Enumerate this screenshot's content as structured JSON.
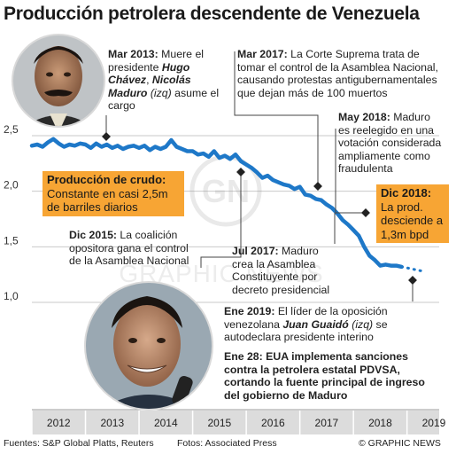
{
  "title": "Producción petrolera descendente de Venezuela",
  "chart_data": {
    "type": "line",
    "ylabel": "",
    "xlabel": "",
    "ylim": [
      1.0,
      2.5
    ],
    "yticks": [
      "2,5",
      "2,0",
      "1,5",
      "1,0"
    ],
    "ytick_values": [
      2.5,
      2.0,
      1.5,
      1.0
    ],
    "xticks": [
      "2012",
      "2013",
      "2014",
      "2015",
      "2016",
      "2017",
      "2018",
      "2019"
    ],
    "xlim": [
      2012.0,
      2019.6
    ],
    "grid": "horizontal",
    "series": [
      {
        "color": "#1e78c8",
        "x": [
          2012.0,
          2012.1,
          2012.2,
          2012.3,
          2012.4,
          2012.5,
          2012.6,
          2012.7,
          2012.8,
          2012.9,
          2013.0,
          2013.1,
          2013.2,
          2013.3,
          2013.4,
          2013.5,
          2013.6,
          2013.7,
          2013.8,
          2013.9,
          2014.0,
          2014.1,
          2014.2,
          2014.3,
          2014.4,
          2014.5,
          2014.6,
          2014.7,
          2014.8,
          2014.9,
          2015.0,
          2015.1,
          2015.2,
          2015.3,
          2015.4,
          2015.5,
          2015.6,
          2015.7,
          2015.8,
          2015.9,
          2016.0,
          2016.1,
          2016.2,
          2016.3,
          2016.4,
          2016.5,
          2016.6,
          2016.7,
          2016.8,
          2016.9,
          2017.0,
          2017.1,
          2017.2,
          2017.3,
          2017.4,
          2017.5,
          2017.6,
          2017.7,
          2017.8,
          2017.9,
          2018.0,
          2018.1,
          2018.2,
          2018.3,
          2018.4,
          2018.5,
          2018.6,
          2018.7,
          2018.8,
          2018.9
        ],
        "y": [
          2.41,
          2.42,
          2.4,
          2.44,
          2.47,
          2.43,
          2.4,
          2.42,
          2.41,
          2.43,
          2.42,
          2.39,
          2.43,
          2.4,
          2.42,
          2.39,
          2.41,
          2.38,
          2.4,
          2.41,
          2.39,
          2.41,
          2.37,
          2.4,
          2.38,
          2.4,
          2.46,
          2.4,
          2.38,
          2.36,
          2.36,
          2.33,
          2.34,
          2.31,
          2.36,
          2.3,
          2.32,
          2.29,
          2.33,
          2.27,
          2.24,
          2.21,
          2.17,
          2.12,
          2.14,
          2.1,
          2.08,
          2.06,
          2.05,
          2.02,
          2.04,
          1.97,
          1.96,
          1.93,
          1.92,
          1.88,
          1.85,
          1.8,
          1.74,
          1.7,
          1.65,
          1.6,
          1.5,
          1.42,
          1.38,
          1.33,
          1.34,
          1.33,
          1.33,
          1.32
        ]
      },
      {
        "color": "#1e78c8",
        "dashed": true,
        "x": [
          2018.9,
          2019.0,
          2019.1,
          2019.2,
          2019.3
        ],
        "y": [
          1.32,
          1.31,
          1.3,
          1.29,
          1.28
        ]
      }
    ],
    "annotations": [
      {
        "date": "Mar 2013:",
        "parts": [
          {
            "t": " Muere el presidente "
          },
          {
            "t": "Hugo Chávez",
            "s": "bi"
          },
          {
            "t": ", "
          },
          {
            "t": "Nicolás Maduro",
            "s": "bi"
          },
          {
            "t": " (izq)",
            "s": "i"
          },
          {
            "t": " asume el cargo"
          }
        ]
      },
      {
        "date": "Mar 2017:",
        "parts": [
          {
            "t": " La Corte Suprema trata de tomar el control de la Asamblea Nacional, causando protestas antigubernamentales que dejan más de 100 muertos"
          }
        ]
      },
      {
        "date": "May 2018:",
        "parts": [
          {
            "t": " Maduro es reelegido en una votación considerada ampliamente como fraudulenta"
          }
        ]
      },
      {
        "date": "Dic 2015:",
        "parts": [
          {
            "t": " La coalición opositora gana el control de la Asamblea Nacional"
          }
        ]
      },
      {
        "date": "Jul 2017:",
        "parts": [
          {
            "t": " Maduro crea la Asamblea Constituyente por decreto presidencial"
          }
        ]
      },
      {
        "date": "Ene 2019:",
        "parts": [
          {
            "t": " El líder de la oposición venezolana "
          },
          {
            "t": "Juan Guaidó",
            "s": "bi"
          },
          {
            "t": " (izq)",
            "s": "i"
          },
          {
            "t": " se autodeclara presidente interino"
          }
        ]
      },
      {
        "date": "Ene 28:",
        "parts": [
          {
            "t": " EUA implementa sanciones contra la petrolera estatal PDVSA, cortando la fuente principal de ingreso del gobierno de Maduro",
            "s": "b"
          }
        ]
      }
    ],
    "callouts": [
      {
        "heading": "Producción de crudo:",
        "text": "Constante en casi 2,5m de barriles diarios"
      },
      {
        "heading": "Dic 2018:",
        "text": "La prod. desciende a 1,3m bpd"
      }
    ]
  },
  "footer": {
    "sources": "Fuentes: S&P Global Platts, Reuters",
    "photos": "Fotos: Associated Press",
    "credit": "© GRAPHIC NEWS"
  },
  "colors": {
    "line": "#1e78c8",
    "callout": "#f7a534",
    "grid": "#c9c9c9",
    "axis_bar": "#dcdcdc"
  }
}
